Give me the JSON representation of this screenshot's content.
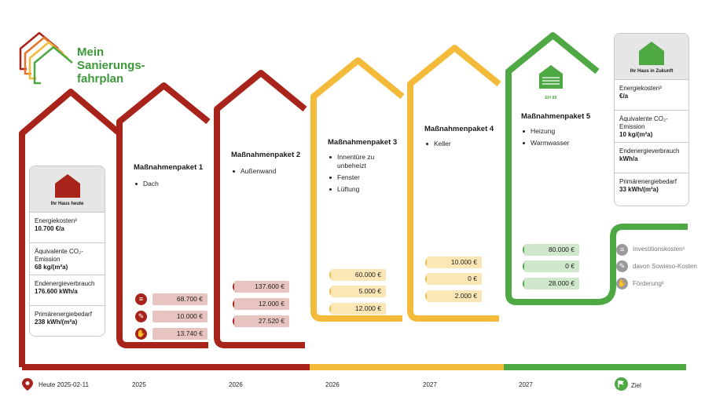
{
  "logo": {
    "line1": "Mein",
    "line2": "Sanierungs-",
    "line3": "fahrplan"
  },
  "colors": {
    "red": "#a8241a",
    "yellow": "#f4bb3a",
    "green": "#4ea944",
    "grey": "#9a9a9a"
  },
  "today_card": {
    "title": "Ihr Haus heute",
    "rows": [
      {
        "label": "Energiekosten³",
        "value": "10.700 €/a"
      },
      {
        "label": "Äquivalente CO₂-Emission",
        "value": "68 kg/(m²a)"
      },
      {
        "label": "Endenergieverbrauch",
        "value": "176.600 kWh/a"
      },
      {
        "label": "Primärenergiebedarf",
        "value": "238 kWh/(m²a)"
      }
    ]
  },
  "future_card": {
    "title": "Ihr Haus in Zukunft",
    "rows": [
      {
        "label": "Energiekosten³",
        "value": "€/a"
      },
      {
        "label": "Äquivalente CO₂-Emission",
        "value": "10 kg/(m²a)"
      },
      {
        "label": "Endenergieverbrauch",
        "value": "kWh/a"
      },
      {
        "label": "Primärenergiebedarf",
        "value": "33 kWh/(m²a)"
      }
    ]
  },
  "packages": [
    {
      "title": "Maßnahmenpaket 1",
      "items": [
        "Dach"
      ],
      "invest": "68.700 €",
      "sowieso": "10.000 €",
      "foerderung": "13.740 €",
      "year": "2025",
      "color": "#a8241a",
      "amount_bg": "#e8c4c0"
    },
    {
      "title": "Maßnahmenpaket 2",
      "items": [
        "Außenwand"
      ],
      "invest": "137.600 €",
      "sowieso": "12.000 €",
      "foerderung": "27.520 €",
      "year": "2026",
      "color": "#a8241a",
      "amount_bg": "#e8c4c0"
    },
    {
      "title": "Maßnahmenpaket 3",
      "items": [
        "Innentüre zu unbeheizt",
        "Fenster",
        "Lüftung"
      ],
      "invest": "60.000 €",
      "sowieso": "5.000 €",
      "foerderung": "12.000 €",
      "year": "2026",
      "color": "#f4bb3a",
      "amount_bg": "#fbe6b5"
    },
    {
      "title": "Maßnahmenpaket 4",
      "items": [
        "Keller"
      ],
      "invest": "10.000 €",
      "sowieso": "0 €",
      "foerderung": "2.000 €",
      "year": "2027",
      "color": "#f4bb3a",
      "amount_bg": "#fbe6b5"
    },
    {
      "title": "Maßnahmenpaket 5",
      "items": [
        "Heizung",
        "Warmwasser"
      ],
      "invest": "80.000 €",
      "sowieso": "0 €",
      "foerderung": "28.000 €",
      "year": "2027",
      "color": "#4ea944",
      "amount_bg": "#cfe7cb",
      "badge": "EH 85"
    }
  ],
  "timeline": {
    "today_label": "Heute 2025-02-11",
    "goal_label": "Ziel"
  },
  "legend": {
    "invest": "Investitionskosten¹",
    "sowieso": "davon Sowieso-Kosten",
    "foerderung": "Förderung²"
  }
}
